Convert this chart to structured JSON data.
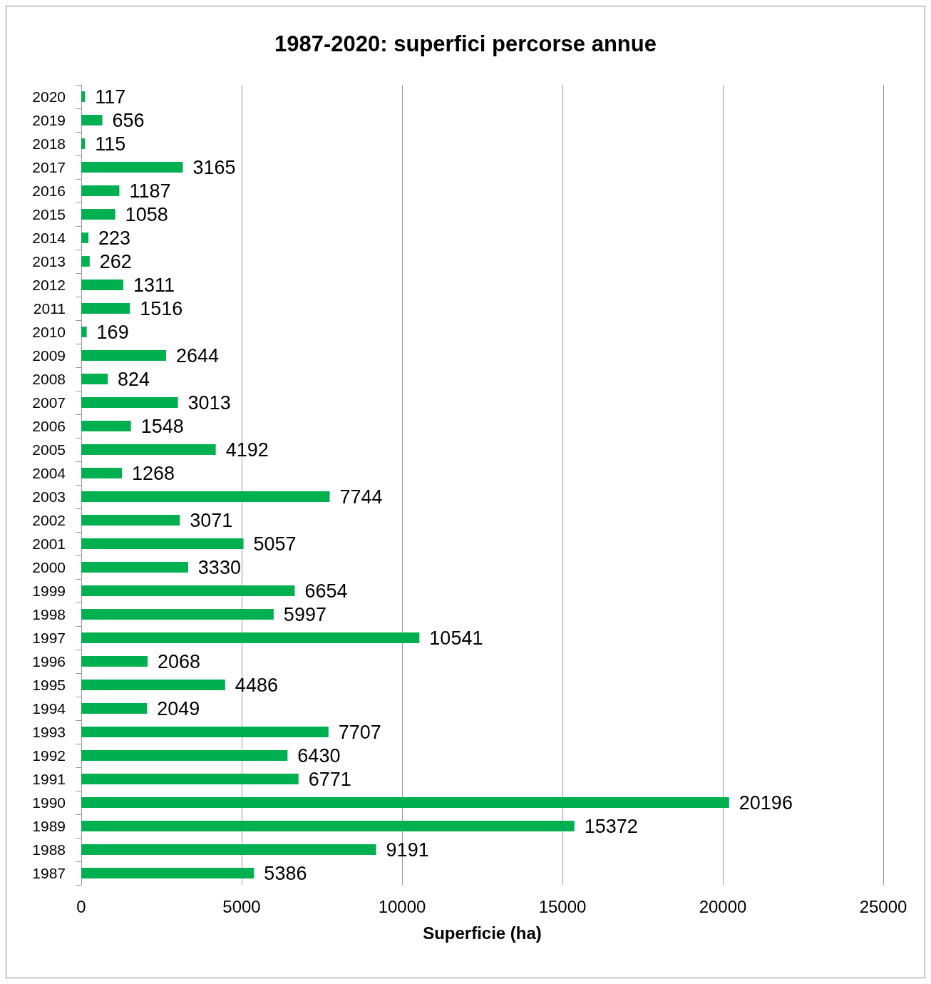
{
  "chart_data": {
    "type": "bar",
    "orientation": "horizontal",
    "title": "1987-2020: superfici percorse annue",
    "xlabel": "Superficie (ha)",
    "categories": [
      "2020",
      "2019",
      "2018",
      "2017",
      "2016",
      "2015",
      "2014",
      "2013",
      "2012",
      "2011",
      "2010",
      "2009",
      "2008",
      "2007",
      "2006",
      "2005",
      "2004",
      "2003",
      "2002",
      "2001",
      "2000",
      "1999",
      "1998",
      "1997",
      "1996",
      "1995",
      "1994",
      "1993",
      "1992",
      "1991",
      "1990",
      "1989",
      "1988",
      "1987"
    ],
    "values": [
      117,
      656,
      115,
      3165,
      1187,
      1058,
      223,
      262,
      1311,
      1516,
      169,
      2644,
      824,
      3013,
      1548,
      4192,
      1268,
      7744,
      3071,
      5057,
      3330,
      6654,
      5997,
      10541,
      2068,
      4486,
      2049,
      7707,
      6430,
      6771,
      20196,
      15372,
      9191,
      5386
    ],
    "color": "#00b050",
    "xlim": [
      0,
      25000
    ],
    "xticks": [
      0,
      5000,
      10000,
      15000,
      20000,
      25000
    ],
    "grid": "x",
    "data_labels": true
  }
}
